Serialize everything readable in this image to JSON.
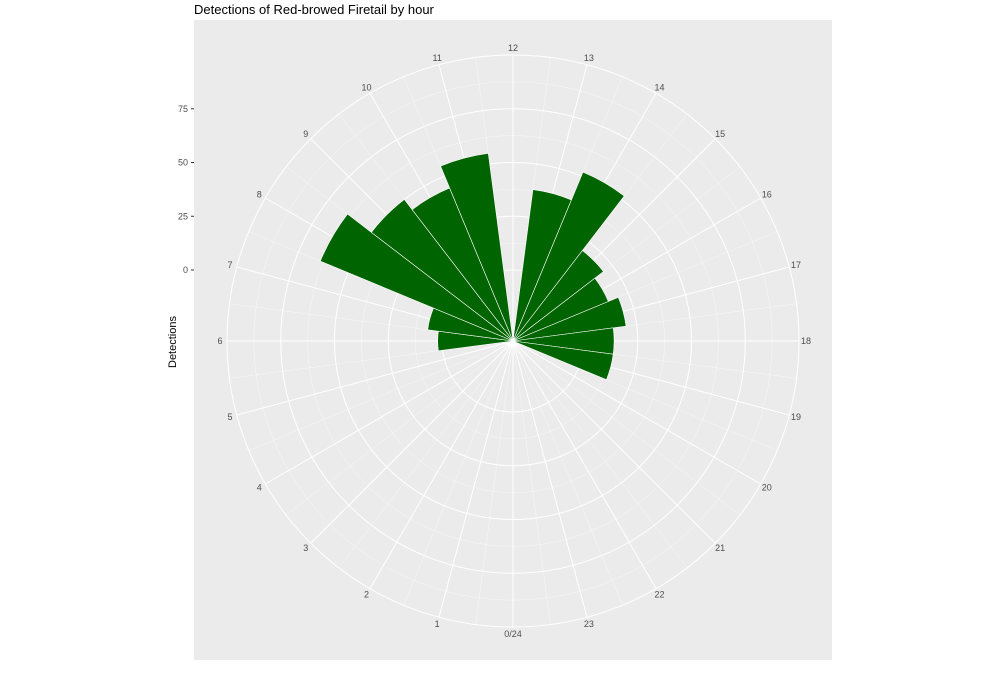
{
  "chart_data": {
    "type": "bar",
    "coord": "polar",
    "title": "Detections of Red-browed Firetail by hour",
    "xlabel": "",
    "ylabel": "Detections",
    "categories": [
      "0/24",
      "1",
      "2",
      "3",
      "4",
      "5",
      "6",
      "7",
      "8",
      "9",
      "10",
      "11",
      "12",
      "13",
      "14",
      "15",
      "16",
      "17",
      "18",
      "19",
      "20",
      "21",
      "22",
      "23"
    ],
    "values": [
      0,
      0,
      0,
      0,
      0,
      0,
      2,
      7,
      64,
      50,
      44,
      55,
      0,
      38,
      52,
      20,
      15,
      20,
      14,
      14,
      0,
      0,
      0,
      0
    ],
    "yticks": [
      0,
      25,
      50,
      75
    ],
    "ylim": [
      -25,
      100
    ],
    "grid": true,
    "bar_color": "#006400",
    "panel_color": "#ebebeb"
  }
}
